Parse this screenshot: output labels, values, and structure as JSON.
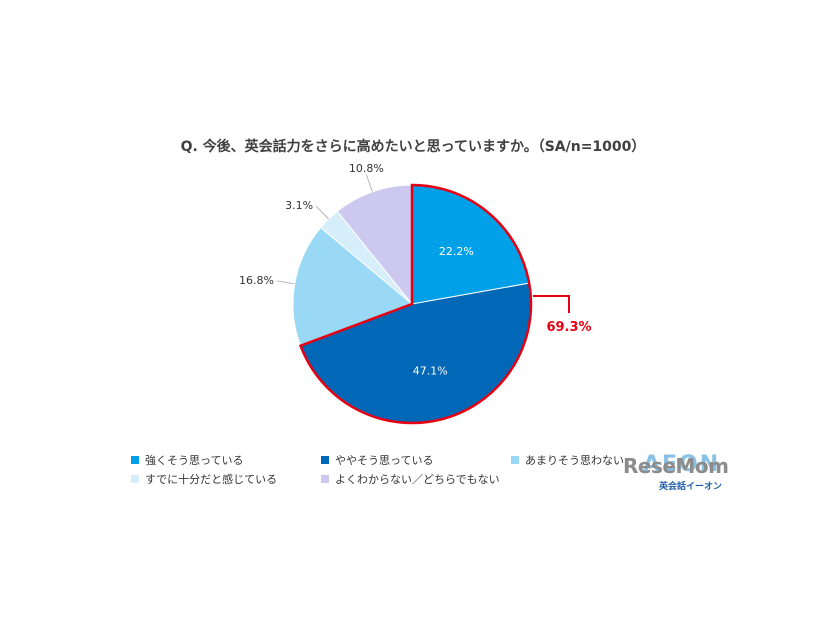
{
  "chart_data": {
    "type": "pie",
    "title": "Q. 今後、英会話力をさらに高めたいと思っていますか。（SA/n=1000）",
    "categories": [
      "強くそう思っている",
      "ややそう思っている",
      "あまりそう思わない",
      "すでに十分だと感じている",
      "よくわからない／どちらでもない"
    ],
    "values": [
      22.2,
      47.1,
      16.8,
      3.1,
      10.8
    ],
    "labels": [
      "22.2%",
      "47.1%",
      "16.8%",
      "3.1%",
      "10.8%"
    ],
    "colors": [
      "#00a0e9",
      "#0068b7",
      "#99d9f5",
      "#d6eefa",
      "#ccc8f0"
    ],
    "highlight": {
      "label": "69.3%",
      "segments": [
        0,
        1
      ],
      "color": "#e60012"
    },
    "legend_position": "bottom"
  },
  "watermark": {
    "brand": "ReseMom",
    "sponsor": "AEON",
    "sponsor_sub": "英会話イーオン"
  }
}
